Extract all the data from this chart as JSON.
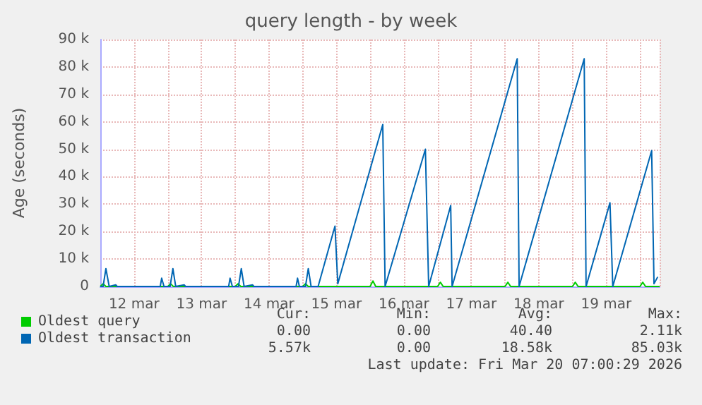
{
  "chart_data": {
    "type": "line",
    "title": "query length - by week",
    "ylabel": "Age (seconds)",
    "xlim": [
      "2026-03-12T00:00",
      "2026-03-20T07:00"
    ],
    "xticks": [
      {
        "value": "2026-03-12T12:00",
        "label": "12 mar"
      },
      {
        "value": "2026-03-13T12:00",
        "label": "13 mar"
      },
      {
        "value": "2026-03-14T12:00",
        "label": "14 mar"
      },
      {
        "value": "2026-03-15T12:00",
        "label": "15 mar"
      },
      {
        "value": "2026-03-16T12:00",
        "label": "16 mar"
      },
      {
        "value": "2026-03-17T12:00",
        "label": "17 mar"
      },
      {
        "value": "2026-03-18T12:00",
        "label": "18 mar"
      },
      {
        "value": "2026-03-19T12:00",
        "label": "19 mar"
      }
    ],
    "ylim": [
      0,
      90000
    ],
    "yticks": [
      0,
      {
        "value": 10000,
        "label": "10 k"
      },
      {
        "value": 20000,
        "label": "20 k"
      },
      {
        "value": 30000,
        "label": "30 k"
      },
      {
        "value": 40000,
        "label": "40 k"
      },
      {
        "value": 50000,
        "label": "50 k"
      },
      {
        "value": 60000,
        "label": "60 k"
      },
      {
        "value": 70000,
        "label": "70 k"
      },
      {
        "value": 80000,
        "label": "80 k"
      },
      {
        "value": 90000,
        "label": "90 k"
      }
    ],
    "grid": true,
    "legend": "bottom left",
    "marker": "none",
    "line_style": "solid",
    "series": [
      {
        "name": "Oldest query",
        "color": "#00cc00",
        "x": [
          "2026-03-12T00:00",
          "2026-03-12T01:00",
          "2026-03-12T02:00",
          "2026-03-13T00:00",
          "2026-03-13T01:00",
          "2026-03-13T02:00",
          "2026-03-14T00:00",
          "2026-03-14T01:00",
          "2026-03-14T02:00",
          "2026-03-15T00:00",
          "2026-03-15T01:00",
          "2026-03-15T02:00",
          "2026-03-16T00:00",
          "2026-03-16T01:00",
          "2026-03-16T02:00",
          "2026-03-17T00:00",
          "2026-03-17T01:00",
          "2026-03-17T02:00",
          "2026-03-18T00:00",
          "2026-03-18T01:00",
          "2026-03-18T02:00",
          "2026-03-19T00:00",
          "2026-03-19T01:00",
          "2026-03-19T02:00",
          "2026-03-20T00:00",
          "2026-03-20T01:00",
          "2026-03-20T02:00",
          "2026-03-20T07:00"
        ],
        "values": [
          0,
          1000,
          0,
          0,
          1000,
          0,
          0,
          1000,
          0,
          0,
          1000,
          0,
          0,
          2000,
          0,
          0,
          1500,
          0,
          0,
          1500,
          0,
          0,
          1500,
          0,
          0,
          1500,
          0,
          0
        ]
      },
      {
        "name": "Oldest transaction",
        "color": "#0066b3",
        "x": [
          "2026-03-12T00:00",
          "2026-03-12T01:00",
          "2026-03-12T02:00",
          "2026-03-12T03:10",
          "2026-03-12T05:30",
          "2026-03-12T06:00",
          "2026-03-12T21:20",
          "2026-03-12T21:50",
          "2026-03-12T22:40",
          "2026-03-13T00:50",
          "2026-03-13T01:50",
          "2026-03-13T02:50",
          "2026-03-13T05:50",
          "2026-03-13T06:20",
          "2026-03-13T21:40",
          "2026-03-13T22:10",
          "2026-03-13T23:00",
          "2026-03-14T01:10",
          "2026-03-14T02:10",
          "2026-03-14T03:10",
          "2026-03-14T06:10",
          "2026-03-14T06:40",
          "2026-03-14T21:40",
          "2026-03-14T22:10",
          "2026-03-14T22:50",
          "2026-03-15T01:00",
          "2026-03-15T02:00",
          "2026-03-15T03:00",
          "2026-03-15T05:30",
          "2026-03-15T11:30",
          "2026-03-15T12:30",
          "2026-03-16T04:30",
          "2026-03-16T05:20",
          "2026-03-16T19:40",
          "2026-03-16T20:50",
          "2026-03-17T04:40",
          "2026-03-17T05:10",
          "2026-03-18T04:20",
          "2026-03-18T05:00",
          "2026-03-19T04:10",
          "2026-03-19T04:50",
          "2026-03-19T13:20",
          "2026-03-19T14:20",
          "2026-03-20T04:10",
          "2026-03-20T05:00",
          "2026-03-20T06:20"
        ],
        "values": [
          0,
          0,
          6500,
          0,
          600,
          0,
          0,
          3000,
          0,
          0,
          6500,
          0,
          600,
          0,
          0,
          3000,
          0,
          0,
          6500,
          0,
          600,
          0,
          0,
          3000,
          0,
          0,
          6500,
          0,
          0,
          22000,
          1000,
          59000,
          0,
          50000,
          0,
          29500,
          0,
          83000,
          0,
          83000,
          0,
          30500,
          0,
          49500,
          1000,
          3500
        ]
      }
    ],
    "annotations": [
      "Cur:",
      "Min:",
      "Avg:",
      "Max:",
      "0.00",
      "0.00",
      "40.40",
      "2.11k",
      "5.57k",
      "0.00",
      "18.58k",
      "85.03k",
      "Last update: Fri Mar 20 07:00:29 2026"
    ]
  }
}
